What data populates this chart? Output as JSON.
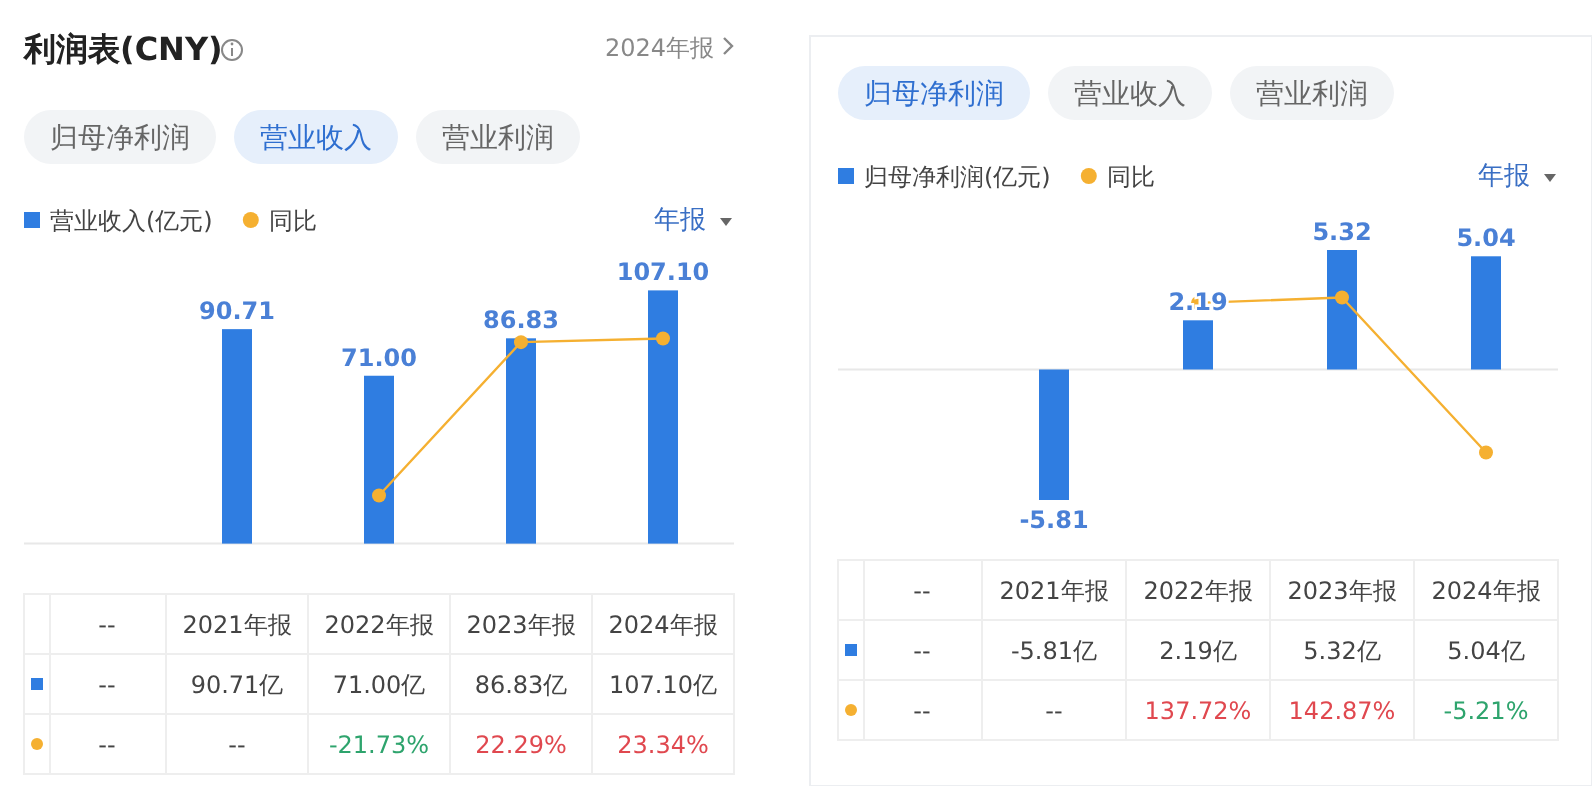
{
  "chart_data": [
    {
      "type": "bar",
      "title": "利润表(CNY)",
      "subtitle": "2024年报",
      "annotations": [
        "归母净利润",
        "营业收入",
        "营业利润",
        "年报",
        {
          "text": "90.71",
          "x": "2021年报",
          "y": 90.71
        },
        {
          "text": "71.00",
          "x": "2022年报",
          "y": 71.0
        },
        {
          "text": "86.83",
          "x": "2023年报",
          "y": 86.83
        },
        {
          "text": "107.10",
          "x": "2024年报",
          "y": 107.1
        }
      ],
      "categories": [
        "--",
        "2021年报",
        "2022年报",
        "2023年报",
        "2024年报"
      ],
      "series": [
        {
          "name": "营业收入(亿元)",
          "color": "#2f7de1",
          "values": [
            null,
            90.71,
            71.0,
            86.83,
            107.1
          ],
          "value_labels": [
            "--",
            "90.71亿",
            "71.00亿",
            "86.83亿",
            "107.10亿"
          ]
        },
        {
          "type": "line",
          "axis": "y2",
          "name": "同比",
          "color": "#f5b031",
          "values": [
            null,
            null,
            -21.73,
            22.29,
            23.34
          ],
          "value_labels": [
            "--",
            "--",
            "-21.73%",
            "22.29%",
            "23.34%"
          ]
        }
      ],
      "tick_labels": "x",
      "legend": "top left",
      "marker": "circle"
    },
    {
      "type": "bar",
      "annotations": [
        "归母净利润",
        "营业收入",
        "营业利润",
        "年报",
        {
          "text": "-5.81",
          "x": "2021年报",
          "y": -5.81
        },
        {
          "text": "2.19",
          "x": "2022年报",
          "y": 2.19
        },
        {
          "text": "5.32",
          "x": "2023年报",
          "y": 5.32
        },
        {
          "text": "5.04",
          "x": "2024年报",
          "y": 5.04
        }
      ],
      "categories": [
        "--",
        "2021年报",
        "2022年报",
        "2023年报",
        "2024年报"
      ],
      "series": [
        {
          "name": "归母净利润(亿元)",
          "color": "#2f7de1",
          "values": [
            null,
            -5.81,
            2.19,
            5.32,
            5.04
          ],
          "value_labels": [
            "--",
            "-5.81亿",
            "2.19亿",
            "5.32亿",
            "5.04亿"
          ]
        },
        {
          "type": "line",
          "axis": "y2",
          "name": "同比",
          "color": "#f5b031",
          "values": [
            null,
            null,
            137.72,
            142.87,
            -5.21
          ],
          "value_labels": [
            "--",
            "--",
            "137.72%",
            "142.87%",
            "-5.21%"
          ]
        }
      ],
      "tick_labels": "x",
      "legend": "top left",
      "marker": "circle"
    }
  ]
}
